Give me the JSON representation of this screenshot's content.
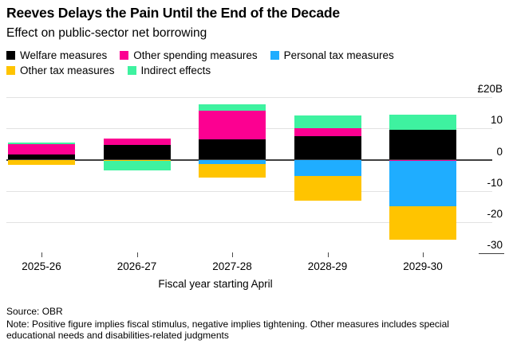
{
  "title": "Reeves Delays the Pain Until the End of the Decade",
  "subtitle": "Effect on public-sector net borrowing",
  "legend": [
    {
      "label": "Welfare measures",
      "color": "#000000"
    },
    {
      "label": "Other spending measures",
      "color": "#FC0091"
    },
    {
      "label": "Personal tax measures",
      "color": "#1FADFF"
    },
    {
      "label": "Other tax measures",
      "color": "#FFC400"
    },
    {
      "label": "Indirect effects",
      "color": "#3EF2A0"
    }
  ],
  "chart_data": {
    "type": "bar",
    "stacked": true,
    "title": "Reeves Delays the Pain Until the End of the Decade",
    "subtitle": "Effect on public-sector net borrowing",
    "categories": [
      "2025-26",
      "2026-27",
      "2027-28",
      "2028-29",
      "2029-30"
    ],
    "series": [
      {
        "name": "Welfare measures",
        "color": "#000000",
        "values": [
          1.6,
          4.8,
          6.4,
          7.5,
          9.5
        ]
      },
      {
        "name": "Other spending measures",
        "color": "#FC0091",
        "values": [
          3.4,
          2.0,
          9.3,
          2.6,
          -0.4
        ]
      },
      {
        "name": "Personal tax measures",
        "color": "#1FADFF",
        "values": [
          0,
          0,
          -1.5,
          -5.1,
          -14.4
        ]
      },
      {
        "name": "Other tax measures",
        "color": "#FFC400",
        "values": [
          -1.6,
          -0.5,
          -4.3,
          -7.9,
          -10.8
        ]
      },
      {
        "name": "Indirect effects",
        "color": "#3EF2A0",
        "values": [
          0.4,
          -3.0,
          2.0,
          4.1,
          5.0
        ]
      }
    ],
    "xlabel": "Fiscal year starting April",
    "ylabel": "",
    "y_axis": {
      "ticks": [
        20,
        10,
        0,
        -10,
        -20,
        -30
      ],
      "tick_labels": [
        "£20B",
        "10",
        "0",
        "-10",
        "-20",
        "-30"
      ]
    },
    "ylim": [
      -32,
      22
    ],
    "grid": "horizontal",
    "legend_position": "top"
  },
  "footer": {
    "source": "Source: OBR",
    "note": "Note: Positive figure implies fiscal stimulus, negative implies tightening. Other measures includes special educational needs and disabilities-related judgments"
  }
}
